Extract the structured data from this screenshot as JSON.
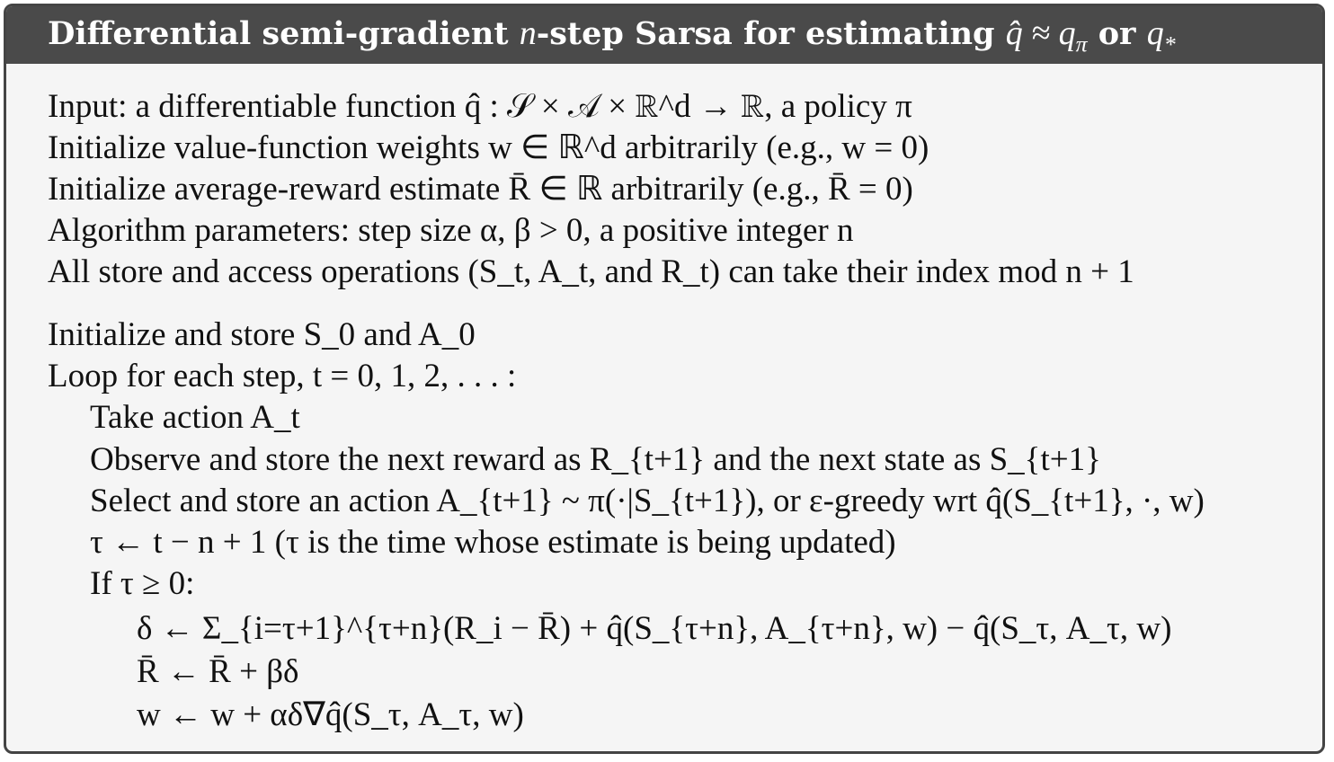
{
  "algorithm": {
    "title": "Differential semi-gradient n-step Sarsa for estimating q̂ ≈ qπ or q*",
    "title_text": "Differential semi-gradient ",
    "title_n": "n",
    "title_mid": "-step Sarsa for estimating ",
    "title_q": "q̂ ≈ q",
    "title_pi": "π",
    "title_or": " or ",
    "title_qstar": "q",
    "title_star": "*",
    "lines": [
      "Input: a differentiable function q̂ : 𝒮 × 𝒜 × ℝ^d → ℝ, a policy π",
      "Initialize value-function weights w ∈ ℝ^d arbitrarily (e.g., w = 0)",
      "Initialize average-reward estimate R̄ ∈ ℝ arbitrarily (e.g., R̄ = 0)",
      "Algorithm parameters: step size α, β > 0, a positive integer n",
      "All store and access operations (S_t, A_t, and R_t) can take their index mod n + 1",
      "Initialize and store S_0 and A_0",
      "Loop for each step, t = 0, 1, 2, . . . :",
      "Take action A_t",
      "Observe and store the next reward as R_{t+1} and the next state as S_{t+1}",
      "Select and store an action A_{t+1} ~ π(·|S_{t+1}), or ε-greedy wrt q̂(S_{t+1}, ·, w)",
      "τ ← t − n + 1    (τ is the time whose estimate is being updated)",
      "If τ ≥ 0:",
      "δ ← Σ_{i=τ+1}^{τ+n}(R_i − R̄) + q̂(S_{τ+n}, A_{τ+n}, w) − q̂(S_τ, A_τ, w)",
      "R̄ ← R̄ + βδ",
      "w ← w + αδ∇q̂(S_τ, A_τ, w)"
    ]
  }
}
